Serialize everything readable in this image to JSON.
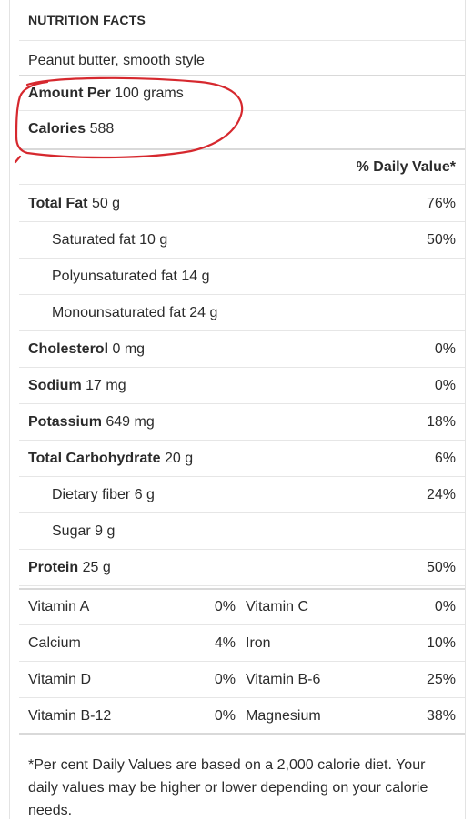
{
  "header": {
    "title": "NUTRITION FACTS"
  },
  "food": {
    "name": "Peanut butter, smooth style"
  },
  "serving": {
    "amount_label": "Amount Per",
    "amount_value": "100 grams",
    "calories_label": "Calories",
    "calories_value": "588"
  },
  "daily_value_header": "% Daily Value*",
  "nutrients": [
    {
      "name": "Total Fat",
      "amount": "50 g",
      "dv": "76%"
    },
    {
      "name": "Saturated fat",
      "amount": "10 g",
      "dv": "50%"
    },
    {
      "name": "Polyunsaturated fat",
      "amount": "14 g",
      "dv": ""
    },
    {
      "name": "Monounsaturated fat",
      "amount": "24 g",
      "dv": ""
    },
    {
      "name": "Cholesterol",
      "amount": "0 mg",
      "dv": "0%"
    },
    {
      "name": "Sodium",
      "amount": "17 mg",
      "dv": "0%"
    },
    {
      "name": "Potassium",
      "amount": "649 mg",
      "dv": "18%"
    },
    {
      "name": "Total Carbohydrate",
      "amount": "20 g",
      "dv": "6%"
    },
    {
      "name": "Dietary fiber",
      "amount": "6 g",
      "dv": "24%"
    },
    {
      "name": "Sugar",
      "amount": "9 g",
      "dv": ""
    },
    {
      "name": "Protein",
      "amount": "25 g",
      "dv": "50%"
    }
  ],
  "vitamins": [
    {
      "left_name": "Vitamin A",
      "left_pct": "0%",
      "right_name": "Vitamin C",
      "right_pct": "0%"
    },
    {
      "left_name": "Calcium",
      "left_pct": "4%",
      "right_name": "Iron",
      "right_pct": "10%"
    },
    {
      "left_name": "Vitamin D",
      "left_pct": "0%",
      "right_name": "Vitamin B-6",
      "right_pct": "25%"
    },
    {
      "left_name": "Vitamin B-12",
      "left_pct": "0%",
      "right_name": "Magnesium",
      "right_pct": "38%"
    }
  ],
  "footnote": "*Per cent Daily Values are based on a 2,000 calorie diet. Your daily values may be higher or lower depending on your calorie needs.",
  "annotation": {
    "color": "#d6282e",
    "shape": "hand-drawn-ellipse"
  }
}
